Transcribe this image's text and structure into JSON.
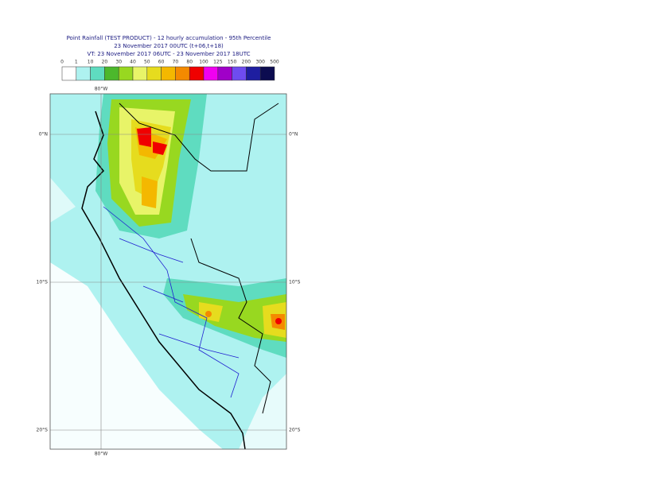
{
  "header": {
    "title": "Point Rainfall (TEST PRODUCT) - 12 hourly accumulation - 95th Percentile",
    "base_time": "23 November 2017 00UTC (t+06,t+18)",
    "valid_time": "VT: 23 November 2017 06UTC - 23 November 2017 18UTC"
  },
  "legend": {
    "labels": [
      0,
      1,
      10,
      20,
      30,
      40,
      50,
      60,
      70,
      80,
      100,
      125,
      150,
      200,
      300,
      500
    ],
    "colors": [
      "#ffffff",
      "#aef2f0",
      "#5fdcc0",
      "#4cb82c",
      "#98d820",
      "#e8f468",
      "#e6dc1e",
      "#f4b800",
      "#f48a00",
      "#f00000",
      "#f000f0",
      "#a000c8",
      "#6e4cf0",
      "#1e1ea0",
      "#0c0c50"
    ]
  },
  "map": {
    "lat_labels": [
      "0°N",
      "10°S",
      "20°S"
    ],
    "lon_label": "80°W"
  }
}
